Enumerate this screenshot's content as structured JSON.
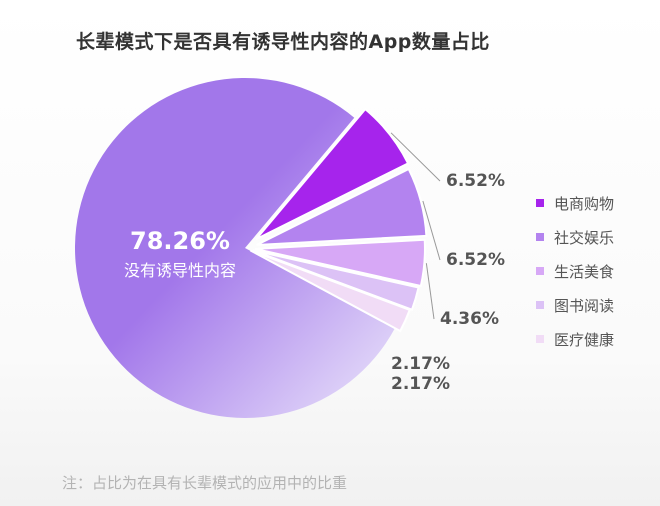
{
  "chart_data": {
    "type": "pie",
    "title": "长辈模式下是否具有诱导性内容的App数量占比",
    "note": "注：占比为在具有长辈模式的应用中的比重",
    "main": {
      "value": 78.26,
      "label_value": "78.26%",
      "label": "没有诱导性内容"
    },
    "slices": [
      {
        "name": "电商购物",
        "value": 6.52,
        "label": "6.52%",
        "color": "#a624ec"
      },
      {
        "name": "社交娱乐",
        "value": 6.52,
        "label": "6.52%",
        "color": "#b383ef"
      },
      {
        "name": "生活美食",
        "value": 4.36,
        "label": "4.36%",
        "color": "#d7a8f6"
      },
      {
        "name": "图书阅读",
        "value": 2.17,
        "label": "2.17%",
        "color": "#dcc2f6"
      },
      {
        "name": "医疗健康",
        "value": 2.17,
        "label": "2.17%",
        "color": "#f1dcf6"
      }
    ],
    "main_gradient": [
      "#a277ea",
      "#ece7fb"
    ],
    "legend_position": "right"
  }
}
